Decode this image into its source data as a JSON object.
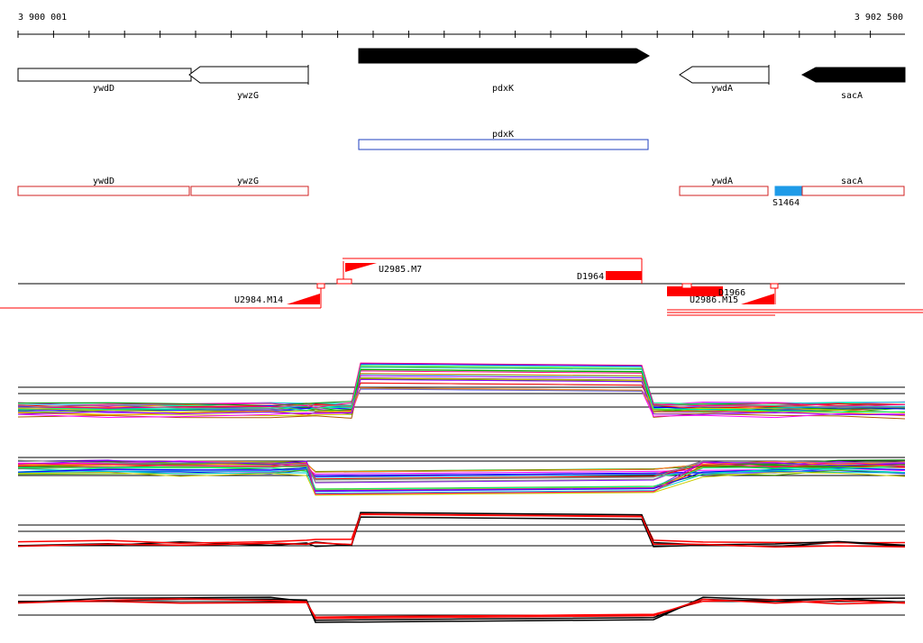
{
  "ruler": {
    "start_label": "3 900 001",
    "end_label": "3 902 500"
  },
  "genes": [
    {
      "name": "ywdD",
      "strand": "-",
      "fill": "#ffffff"
    },
    {
      "name": "ywzG",
      "strand": "-",
      "fill": "#ffffff"
    },
    {
      "name": "pdxK",
      "strand": "+",
      "fill": "#000000"
    },
    {
      "name": "ywdA",
      "strand": "-",
      "fill": "#ffffff"
    },
    {
      "name": "sacA",
      "strand": "-",
      "fill": "#000000"
    }
  ],
  "cds_blue": {
    "name": "pdxK",
    "color": "#1f3fbf"
  },
  "cds_red": {
    "names": [
      "ywdD",
      "ywzG",
      "ywdA",
      "sacA"
    ],
    "color": "#d02020",
    "feature": {
      "name": "S1464",
      "color": "#1e9be8"
    }
  },
  "transcripts": {
    "labels": [
      "U2985.M7",
      "D1964",
      "U2984.M14",
      "D1966",
      "U2986.M15"
    ],
    "color": "#ff0000"
  },
  "profile_colors": [
    "#ff0000",
    "#00aa00",
    "#0000ff",
    "#ff00ff",
    "#00cccc",
    "#cccc00",
    "#ff8800",
    "#8800ff",
    "#00ff88",
    "#ff0088",
    "#888888",
    "#008800",
    "#4444ff",
    "#aa5500",
    "#55aa00"
  ]
}
